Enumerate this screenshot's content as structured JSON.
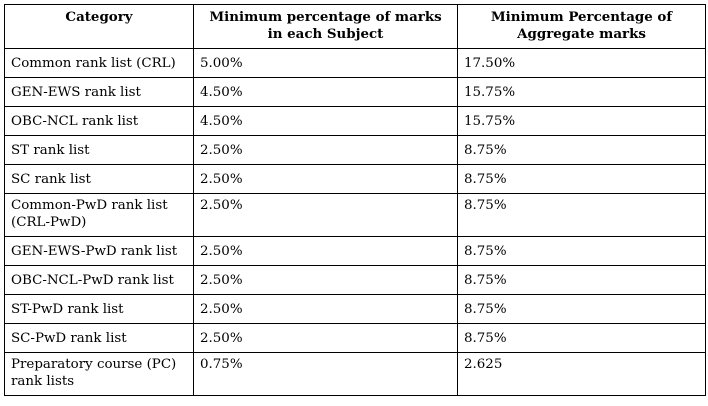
{
  "table": {
    "headers": [
      "Category",
      "Minimum percentage of marks in each Subject",
      "Minimum Percentage of Aggregate marks"
    ],
    "rows": [
      [
        "Common rank list (CRL)",
        "5.00%",
        "17.50%"
      ],
      [
        "GEN-EWS rank list",
        "4.50%",
        "15.75%"
      ],
      [
        "OBC-NCL rank list",
        "4.50%",
        "15.75%"
      ],
      [
        "ST rank list",
        "2.50%",
        "8.75%"
      ],
      [
        "SC rank list",
        "2.50%",
        "8.75%"
      ],
      [
        "Common-PwD rank list (CRL-PwD)",
        "2.50%",
        "8.75%"
      ],
      [
        "GEN-EWS-PwD rank list",
        "2.50%",
        "8.75%"
      ],
      [
        "OBC-NCL-PwD rank list",
        "2.50%",
        "8.75%"
      ],
      [
        "ST-PwD rank list",
        "2.50%",
        "8.75%"
      ],
      [
        "SC-PwD rank list",
        "2.50%",
        "8.75%"
      ],
      [
        "Preparatory course (PC) rank lists",
        "0.75%",
        "2.625"
      ]
    ]
  }
}
